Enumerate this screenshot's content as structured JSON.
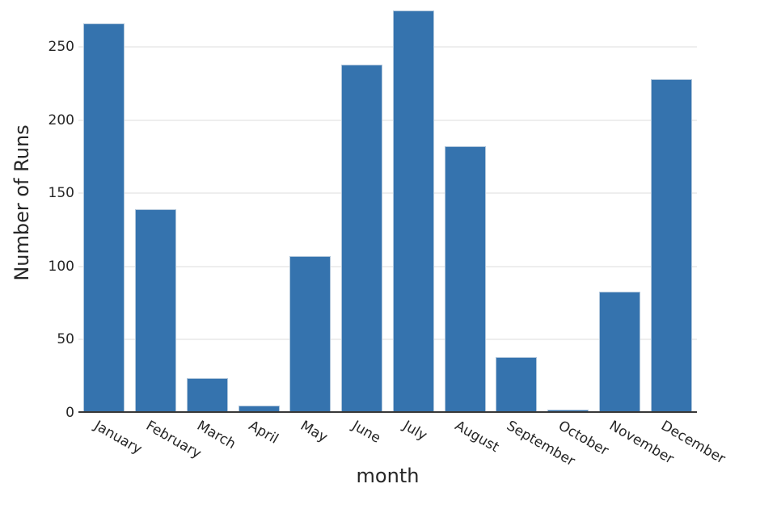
{
  "chart_data": {
    "type": "bar",
    "title": "",
    "xlabel": "month",
    "ylabel": "Number of Runs",
    "categories": [
      "January",
      "February",
      "March",
      "April",
      "May",
      "June",
      "July",
      "August",
      "September",
      "October",
      "November",
      "December"
    ],
    "values": [
      266,
      139,
      24,
      5,
      107,
      238,
      275,
      182,
      38,
      2,
      83,
      228
    ],
    "ylim": [
      0,
      282
    ],
    "yticks": [
      0,
      50,
      100,
      150,
      200,
      250
    ],
    "grid": "horizontal-only",
    "legend": "none",
    "xtick_rotation_deg": 30,
    "colors": {
      "bar_fill": "#3573ae",
      "bar_edge": "#b0c6db",
      "gridline": "#eeeeee",
      "axis_line": "#383838",
      "text": "#262626",
      "background": "#ffffff"
    }
  }
}
